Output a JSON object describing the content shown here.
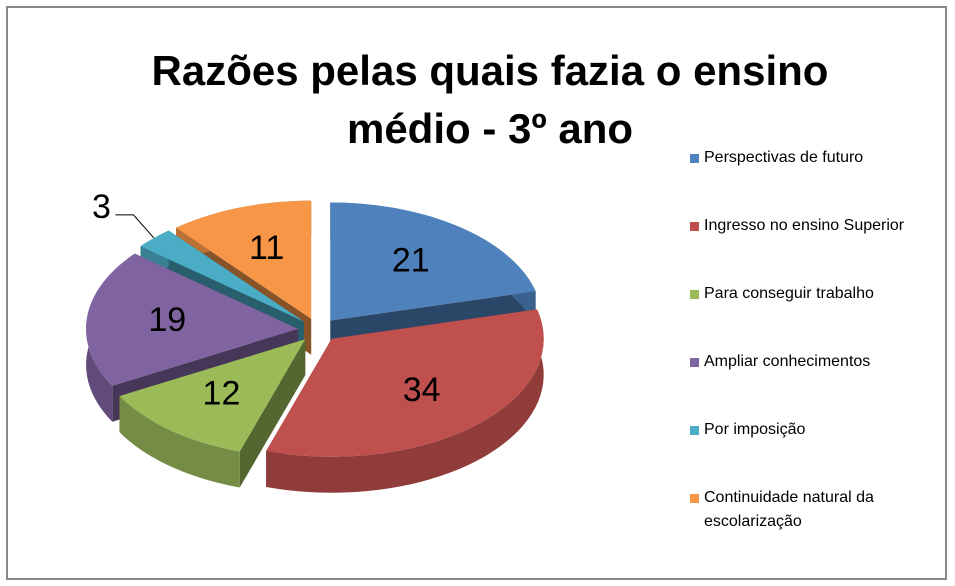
{
  "chart_data": {
    "type": "pie3d",
    "title": "Razões pelas quais fazia o ensino\nmédio - 3º ano",
    "categories": [
      "Perspectivas de futuro",
      "Ingresso no ensino Superior",
      "Para conseguir trabalho",
      "Ampliar conhecimentos",
      "Por imposição",
      "Continuidade natural da escolarização"
    ],
    "values": [
      21,
      34,
      12,
      19,
      3,
      11
    ],
    "colors": [
      "#4f81bd",
      "#c0504d",
      "#9bbb59",
      "#8064a2",
      "#4bacc6",
      "#f79646"
    ],
    "legend": "right"
  }
}
